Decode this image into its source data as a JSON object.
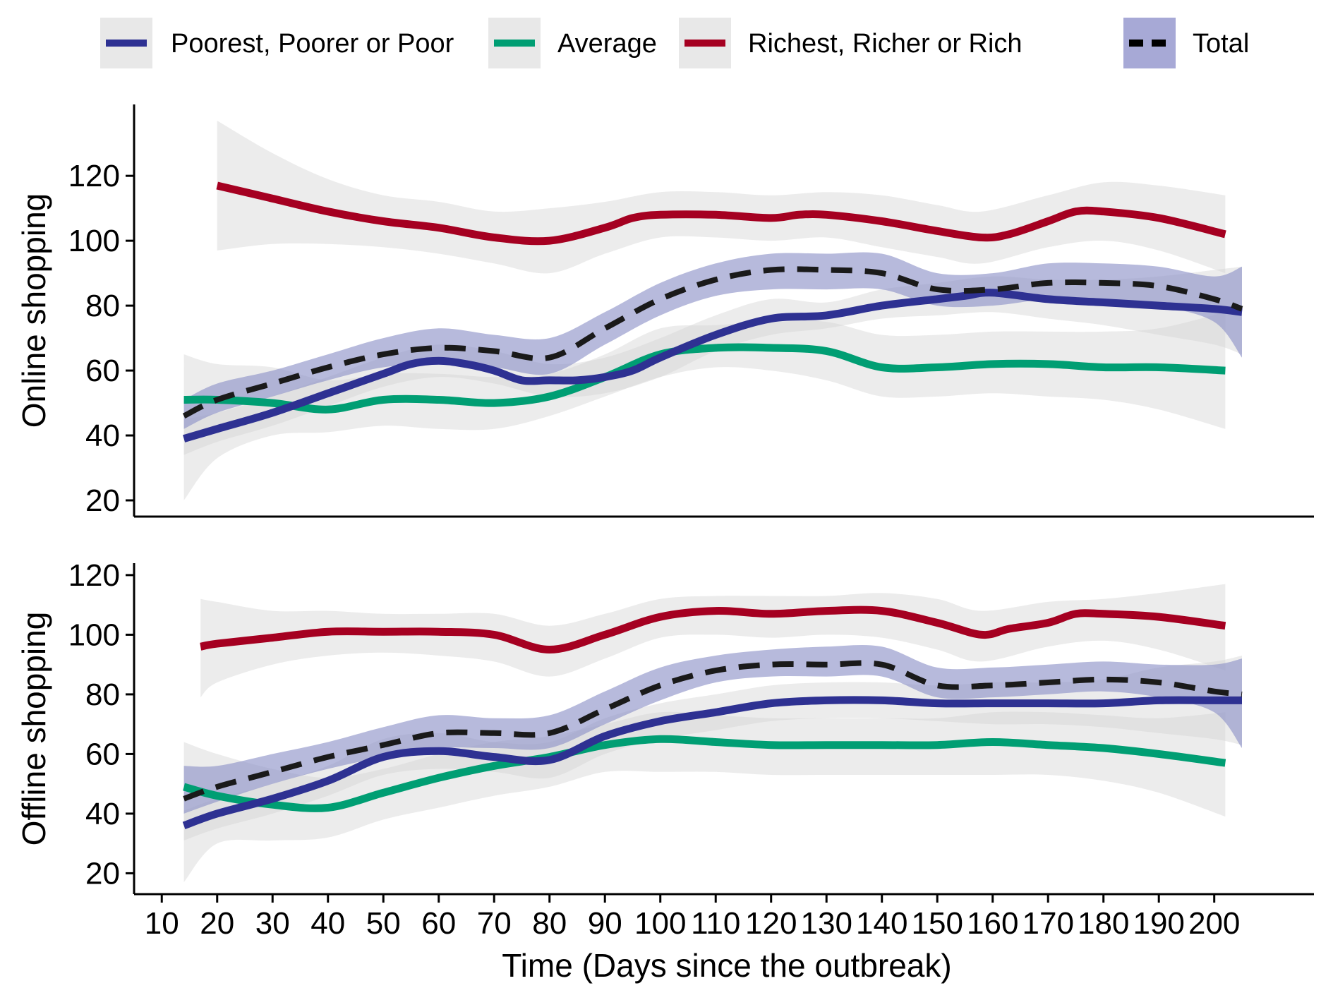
{
  "chart_data": {
    "type": "line",
    "xlabel": "Time (Days since the outbreak)",
    "x_ticks": [
      10,
      20,
      30,
      40,
      50,
      60,
      70,
      80,
      90,
      100,
      110,
      120,
      130,
      140,
      150,
      160,
      170,
      180,
      190,
      200
    ],
    "xlim": [
      5,
      218
    ],
    "legend": {
      "position": "top",
      "entries": [
        {
          "key": "poor",
          "label": "Poorest, Poorer or Poor",
          "color": "#2e3192",
          "dash": false,
          "band": false
        },
        {
          "key": "average",
          "label": "Average",
          "color": "#009e73",
          "dash": false,
          "band": false
        },
        {
          "key": "rich",
          "label": "Richest, Richer or Rich",
          "color": "#a50021",
          "dash": false,
          "band": false
        },
        {
          "key": "total",
          "label": "Total",
          "color": "#000000",
          "dash": true,
          "band": true
        }
      ]
    },
    "panels": [
      {
        "ylabel": "Online shopping",
        "ylim": [
          15,
          142
        ],
        "y_ticks": [
          20,
          40,
          60,
          80,
          100,
          120
        ],
        "series": [
          {
            "key": "poor",
            "x": [
              14,
              20,
              30,
              40,
              50,
              55,
              60,
              65,
              70,
              75,
              80,
              85,
              90,
              95,
              100,
              110,
              120,
              130,
              140,
              150,
              155,
              160,
              170,
              180,
              190,
              200,
              205
            ],
            "y": [
              39,
              42,
              47,
              53,
              59,
              62,
              63,
              62,
              60,
              57,
              57,
              57,
              58,
              60,
              64,
              71,
              76,
              77,
              80,
              82,
              83,
              84,
              82,
              81,
              80,
              79,
              78
            ]
          },
          {
            "key": "average",
            "x": [
              14,
              20,
              30,
              40,
              50,
              60,
              70,
              80,
              90,
              100,
              110,
              120,
              130,
              140,
              150,
              160,
              170,
              180,
              190,
              202
            ],
            "y": [
              51,
              51,
              50,
              48,
              51,
              51,
              50,
              52,
              58,
              65,
              67,
              67,
              66,
              61,
              61,
              62,
              62,
              61,
              61,
              60
            ]
          },
          {
            "key": "rich",
            "x": [
              20,
              30,
              40,
              50,
              60,
              70,
              80,
              90,
              95,
              100,
              110,
              120,
              125,
              130,
              140,
              150,
              158,
              163,
              170,
              175,
              180,
              190,
              202
            ],
            "y": [
              117,
              113,
              109,
              106,
              104,
              101,
              100,
              104,
              107,
              108,
              108,
              107,
              108,
              108,
              106,
              103,
              101,
              102,
              106,
              109,
              109,
              107,
              102
            ]
          },
          {
            "key": "total",
            "x": [
              14,
              20,
              30,
              40,
              50,
              60,
              70,
              80,
              90,
              100,
              110,
              120,
              130,
              140,
              150,
              160,
              170,
              180,
              190,
              200,
              205
            ],
            "y": [
              46,
              51,
              56,
              61,
              65,
              67,
              66,
              64,
              73,
              82,
              88,
              91,
              91,
              90,
              85,
              85,
              87,
              87,
              86,
              82,
              79
            ]
          }
        ],
        "bands": [
          {
            "key": "poor",
            "x": [
              14,
              20,
              30,
              40,
              50,
              60,
              70,
              80,
              90,
              100,
              110,
              120,
              130,
              140,
              150,
              160,
              170,
              180,
              190,
              200,
              205
            ],
            "lower": [
              34,
              38,
              43,
              49,
              55,
              58,
              56,
              52,
              53,
              58,
              66,
              71,
              73,
              76,
              77,
              78,
              76,
              74,
              71,
              68,
              65
            ],
            "upper": [
              45,
              47,
              52,
              58,
              64,
              68,
              66,
              62,
              64,
              70,
              77,
              82,
              81,
              85,
              87,
              89,
              88,
              88,
              89,
              91,
              92
            ]
          },
          {
            "key": "average",
            "x": [
              14,
              20,
              30,
              40,
              50,
              60,
              70,
              80,
              90,
              100,
              110,
              120,
              130,
              140,
              150,
              160,
              170,
              180,
              190,
              202
            ],
            "lower": [
              20,
              33,
              40,
              41,
              43,
              42,
              42,
              46,
              52,
              58,
              61,
              60,
              57,
              52,
              52,
              53,
              52,
              51,
              48,
              42
            ],
            "upper": [
              65,
              62,
              61,
              57,
              59,
              59,
              58,
              59,
              65,
              73,
              74,
              75,
              75,
              71,
              71,
              72,
              72,
              72,
              73,
              78
            ]
          },
          {
            "key": "rich",
            "x": [
              20,
              30,
              40,
              50,
              60,
              70,
              80,
              90,
              100,
              110,
              120,
              130,
              140,
              150,
              158,
              170,
              180,
              190,
              202
            ],
            "lower": [
              97,
              99,
              99,
              98,
              96,
              93,
              90,
              96,
              101,
              101,
              100,
              101,
              98,
              95,
              93,
              98,
              100,
              97,
              90
            ]
          },
          {
            "key": "total",
            "x": [
              14,
              20,
              30,
              40,
              50,
              60,
              70,
              80,
              90,
              100,
              110,
              120,
              130,
              140,
              150,
              160,
              170,
              180,
              190,
              200,
              205
            ],
            "lower": [
              42,
              47,
              52,
              57,
              61,
              62,
              61,
              59,
              68,
              77,
              83,
              85,
              85,
              85,
              80,
              80,
              82,
              82,
              80,
              75,
              64
            ],
            "upper": [
              51,
              56,
              60,
              65,
              70,
              73,
              71,
              70,
              78,
              87,
              93,
              96,
              96,
              96,
              90,
              90,
              93,
              93,
              92,
              89,
              92
            ]
          }
        ]
      },
      {
        "ylabel": "Offline shopping",
        "ylim": [
          13,
          124
        ],
        "y_ticks": [
          20,
          40,
          60,
          80,
          100,
          120
        ],
        "series": [
          {
            "key": "poor",
            "x": [
              14,
              20,
              30,
              40,
              50,
              60,
              70,
              80,
              90,
              100,
              110,
              120,
              130,
              140,
              150,
              160,
              170,
              180,
              190,
              200,
              205
            ],
            "y": [
              36,
              40,
              45,
              51,
              59,
              61,
              59,
              58,
              66,
              71,
              74,
              77,
              78,
              78,
              77,
              77,
              77,
              77,
              78,
              78,
              78
            ]
          },
          {
            "key": "average",
            "x": [
              14,
              20,
              30,
              40,
              50,
              60,
              70,
              80,
              90,
              100,
              110,
              120,
              130,
              140,
              150,
              160,
              170,
              180,
              190,
              202
            ],
            "y": [
              49,
              46,
              43,
              42,
              47,
              52,
              56,
              59,
              63,
              65,
              64,
              63,
              63,
              63,
              63,
              64,
              63,
              62,
              60,
              57
            ]
          },
          {
            "key": "rich",
            "x": [
              17,
              20,
              30,
              40,
              50,
              60,
              70,
              80,
              90,
              100,
              110,
              120,
              130,
              140,
              150,
              158,
              163,
              170,
              175,
              180,
              190,
              202
            ],
            "y": [
              96,
              97,
              99,
              101,
              101,
              101,
              100,
              95,
              100,
              106,
              108,
              107,
              108,
              108,
              104,
              100,
              102,
              104,
              107,
              107,
              106,
              103
            ]
          },
          {
            "key": "total",
            "x": [
              14,
              20,
              30,
              40,
              50,
              60,
              70,
              80,
              90,
              100,
              110,
              120,
              130,
              140,
              150,
              160,
              170,
              180,
              190,
              200,
              205
            ],
            "y": [
              45,
              49,
              54,
              59,
              63,
              67,
              67,
              67,
              75,
              83,
              88,
              90,
              90,
              90,
              83,
              83,
              84,
              85,
              84,
              81,
              80
            ]
          }
        ],
        "bands": [
          {
            "key": "poor",
            "x": [
              14,
              20,
              30,
              40,
              50,
              60,
              70,
              80,
              90,
              100,
              110,
              120,
              130,
              140,
              150,
              160,
              170,
              180,
              190,
              200,
              205
            ],
            "lower": [
              31,
              35,
              40,
              46,
              53,
              55,
              54,
              52,
              60,
              65,
              68,
              71,
              72,
              72,
              71,
              70,
              70,
              69,
              67,
              65,
              63
            ]
          },
          {
            "key": "average",
            "x": [
              14,
              20,
              30,
              40,
              50,
              60,
              70,
              80,
              90,
              100,
              110,
              120,
              130,
              140,
              150,
              160,
              170,
              180,
              190,
              202
            ],
            "lower": [
              17,
              30,
              31,
              32,
              38,
              42,
              46,
              49,
              54,
              54,
              54,
              53,
              53,
              53,
              53,
              53,
              53,
              51,
              47,
              39
            ],
            "upper": [
              64,
              60,
              55,
              52,
              55,
              60,
              64,
              66,
              70,
              74,
              73,
              72,
              72,
              72,
              72,
              74,
              74,
              73,
              72,
              74
            ]
          },
          {
            "key": "rich",
            "x": [
              17,
              20,
              30,
              40,
              50,
              60,
              70,
              80,
              90,
              100,
              110,
              120,
              130,
              140,
              150,
              158,
              170,
              180,
              190,
              202
            ],
            "lower": [
              79,
              84,
              90,
              93,
              94,
              93,
              91,
              86,
              92,
              99,
              100,
              99,
              100,
              99,
              95,
              91,
              96,
              98,
              95,
              88
            ],
            "upper": [
              112,
              111,
              108,
              108,
              107,
              107,
              107,
              103,
              107,
              112,
              113,
              113,
              113,
              114,
              112,
              108,
              111,
              112,
              114,
              117
            ]
          },
          {
            "key": "total",
            "x": [
              14,
              20,
              30,
              40,
              50,
              60,
              70,
              80,
              90,
              100,
              110,
              120,
              130,
              140,
              150,
              160,
              170,
              180,
              190,
              200,
              205
            ],
            "lower": [
              40,
              44,
              50,
              55,
              59,
              62,
              62,
              62,
              70,
              78,
              84,
              86,
              86,
              86,
              79,
              79,
              80,
              81,
              79,
              74,
              62
            ],
            "upper": [
              56,
              56,
              60,
              64,
              69,
              73,
              72,
              73,
              81,
              89,
              93,
              95,
              96,
              96,
              89,
              89,
              90,
              91,
              90,
              90,
              92
            ]
          }
        ]
      }
    ]
  }
}
